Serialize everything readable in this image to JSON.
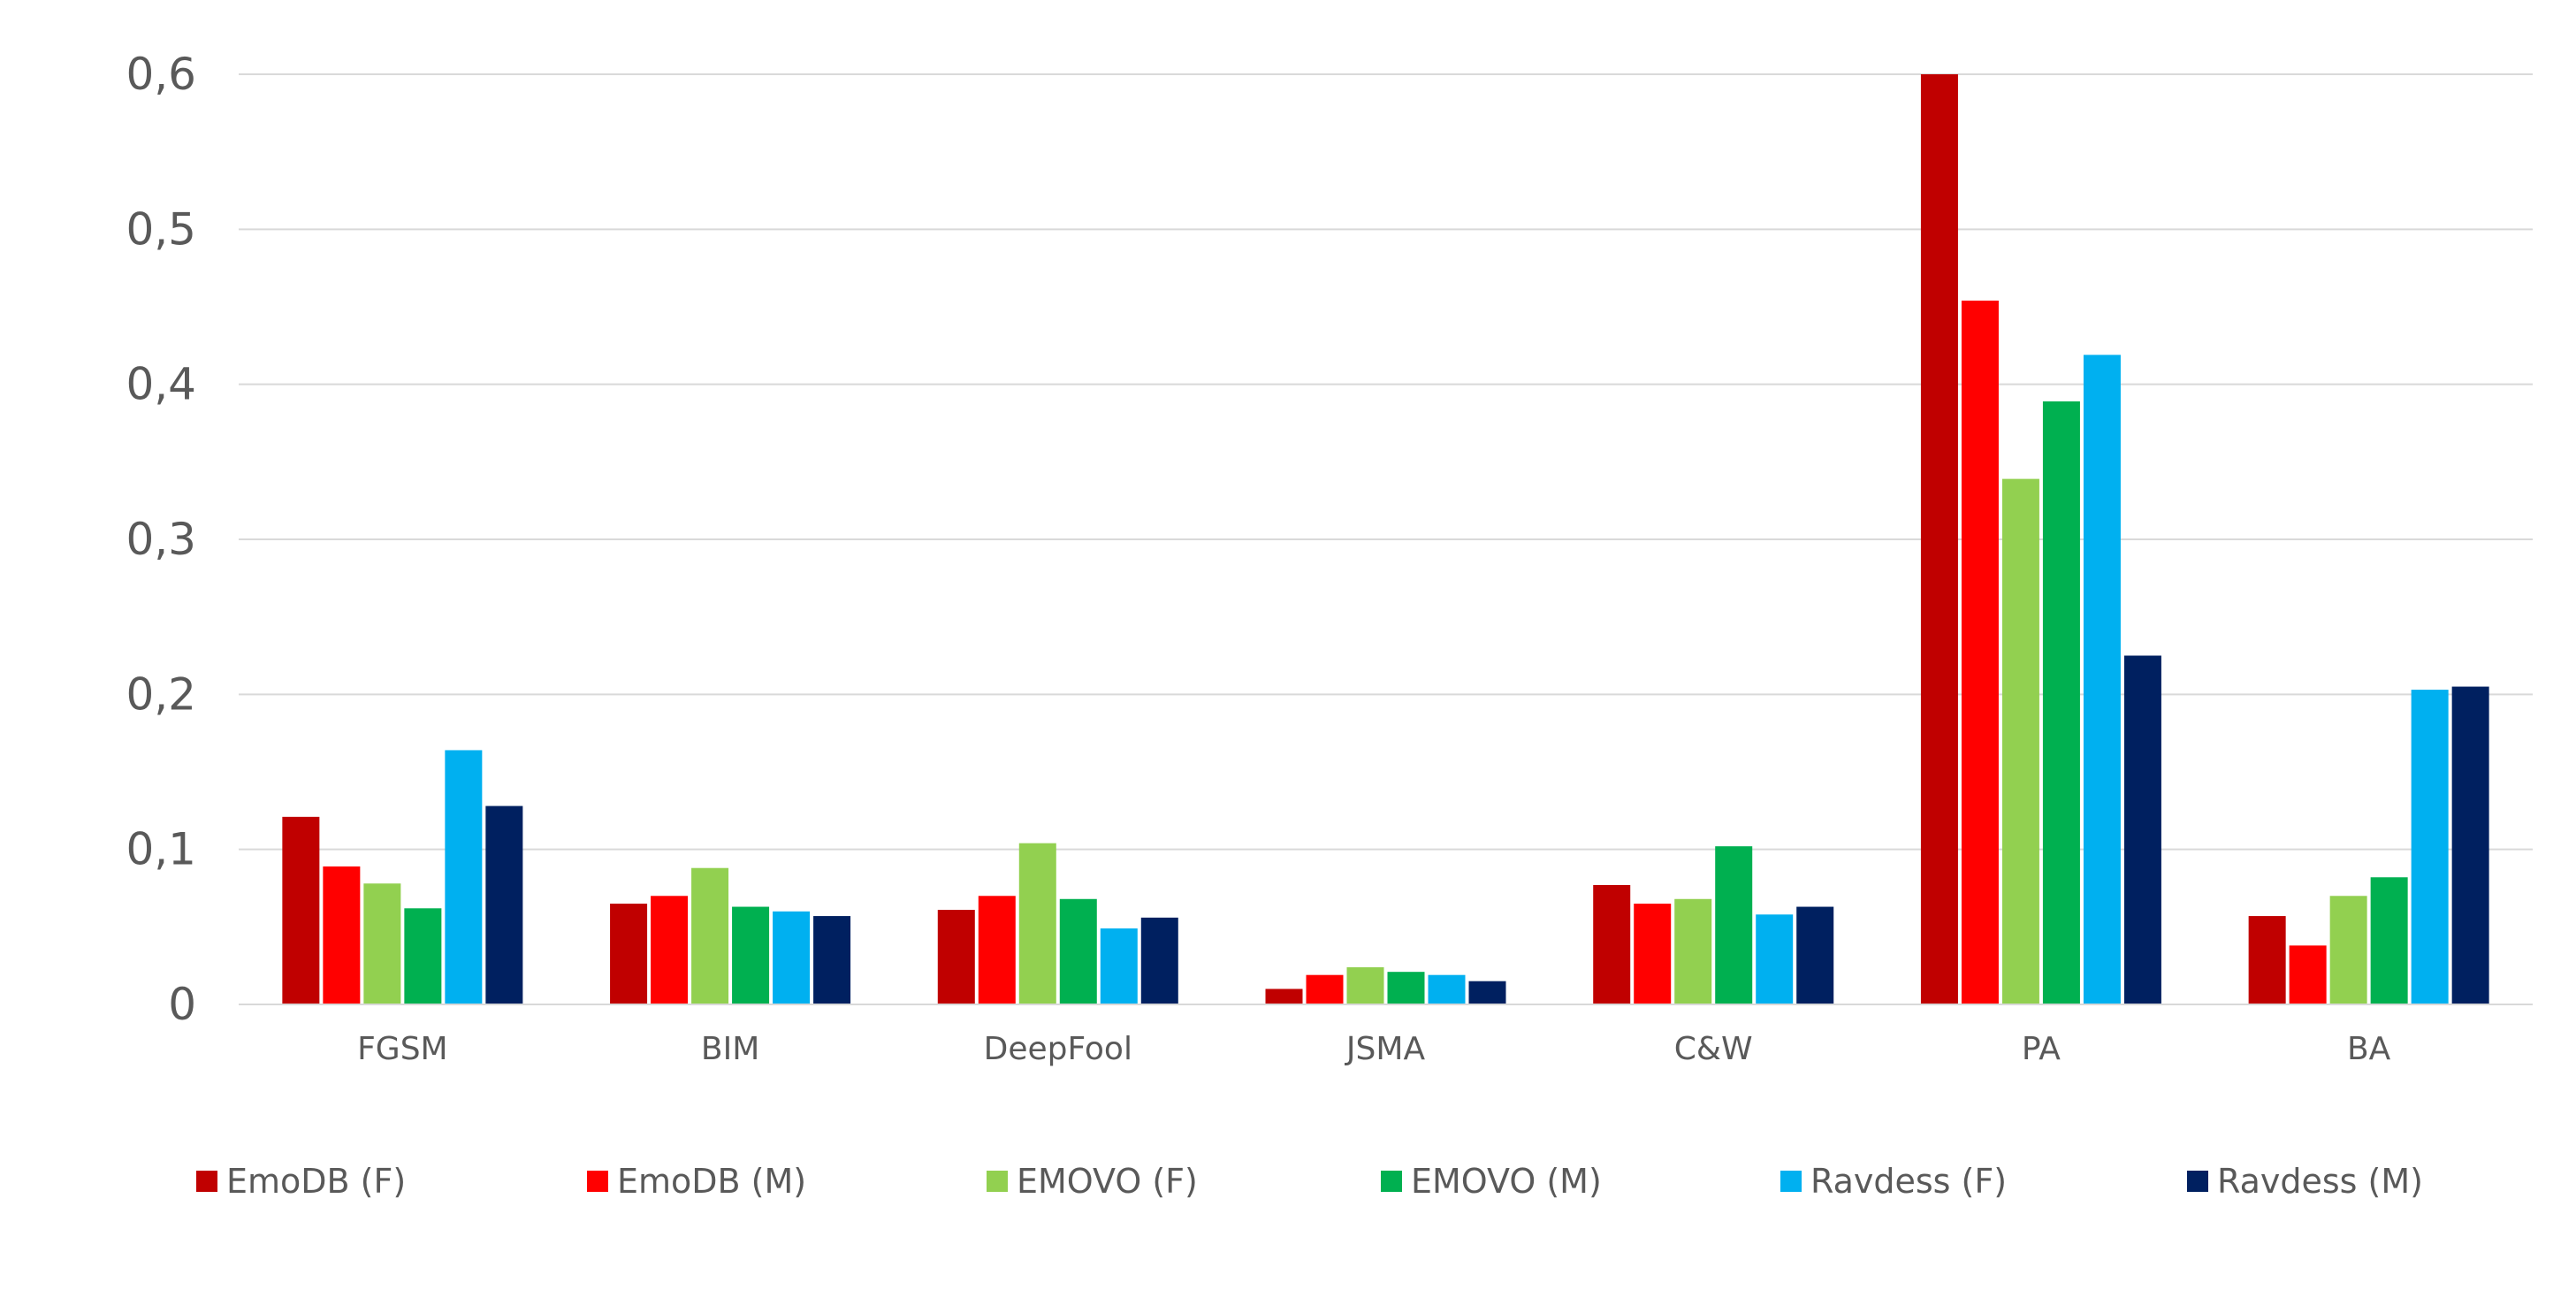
{
  "chart_data": {
    "type": "bar",
    "title": "",
    "xlabel": "",
    "ylabel": "",
    "categories": [
      "FGSM",
      "BIM",
      "DeepFool",
      "JSMA",
      "C&W",
      "PA",
      "BA"
    ],
    "ylim": [
      0,
      0.6
    ],
    "yticks": [
      0,
      0.1,
      0.2,
      0.3,
      0.4,
      0.5,
      0.6
    ],
    "ytick_labels": [
      "0",
      "0,1",
      "0,2",
      "0,3",
      "0,4",
      "0,5",
      "0,6"
    ],
    "grid": true,
    "legend_position": "bottom",
    "series": [
      {
        "name": "EmoDB (F)",
        "color": "#C00000",
        "values": [
          0.121,
          0.065,
          0.061,
          0.01,
          0.077,
          0.6,
          0.057
        ]
      },
      {
        "name": "EmoDB (M)",
        "color": "#FF0000",
        "values": [
          0.089,
          0.07,
          0.07,
          0.019,
          0.065,
          0.454,
          0.038
        ]
      },
      {
        "name": "EMOVO (F)",
        "color": "#92D050",
        "values": [
          0.078,
          0.088,
          0.104,
          0.024,
          0.068,
          0.339,
          0.07
        ]
      },
      {
        "name": "EMOVO (M)",
        "color": "#00B050",
        "values": [
          0.062,
          0.063,
          0.068,
          0.021,
          0.102,
          0.389,
          0.082
        ]
      },
      {
        "name": "Ravdess (F)",
        "color": "#00B0F0",
        "values": [
          0.164,
          0.06,
          0.049,
          0.019,
          0.058,
          0.419,
          0.203
        ]
      },
      {
        "name": "Ravdess (M)",
        "color": "#002060",
        "values": [
          0.128,
          0.057,
          0.056,
          0.015,
          0.063,
          0.225,
          0.205
        ]
      }
    ]
  }
}
